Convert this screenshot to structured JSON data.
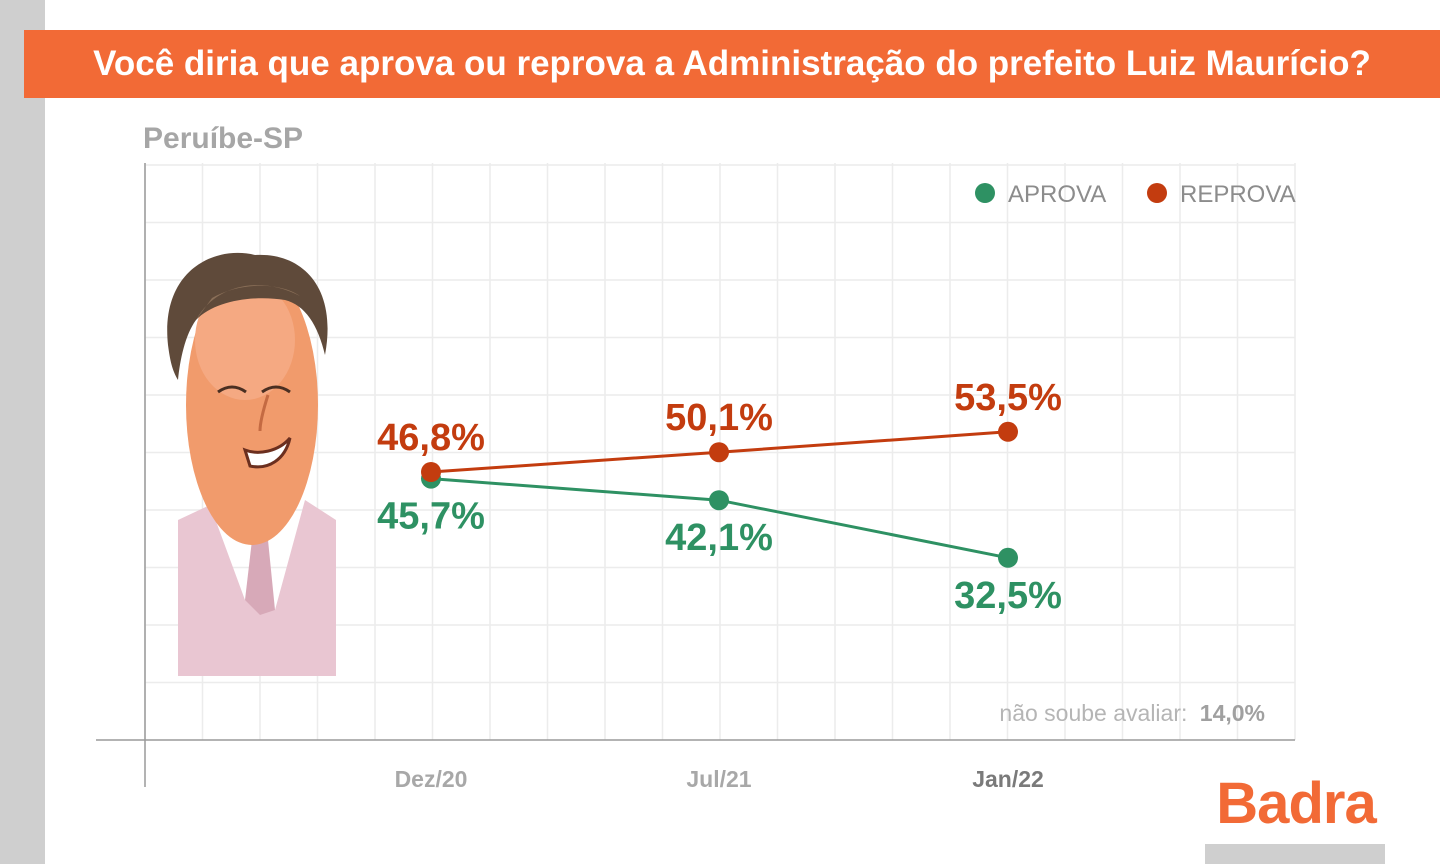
{
  "title": "Você diria que aprova ou reprova a Administração do prefeito Luiz Maurício?",
  "subtitle": "Peruíbe-SP",
  "brand": "Badra",
  "colors": {
    "accent": "#f26a36",
    "aprova": "#2e9163",
    "reprova": "#c33c0f",
    "muted": "#a6a6a6"
  },
  "chart_data": {
    "type": "line",
    "x": [
      "Dez/20",
      "Jul/21",
      "Jan/22"
    ],
    "series": [
      {
        "name": "APROVA",
        "color": "#2e9163",
        "values": [
          45.7,
          42.1,
          32.5
        ],
        "labels": [
          "45,7%",
          "42,1%",
          "32,5%"
        ]
      },
      {
        "name": "REPROVA",
        "color": "#c33c0f",
        "values": [
          46.8,
          50.1,
          53.5
        ],
        "labels": [
          "46,8%",
          "50,1%",
          "53,5%"
        ]
      }
    ],
    "note_label": "não soube avaliar:",
    "note_value": "14,0%",
    "legend_position": "top-right",
    "grid": true
  }
}
